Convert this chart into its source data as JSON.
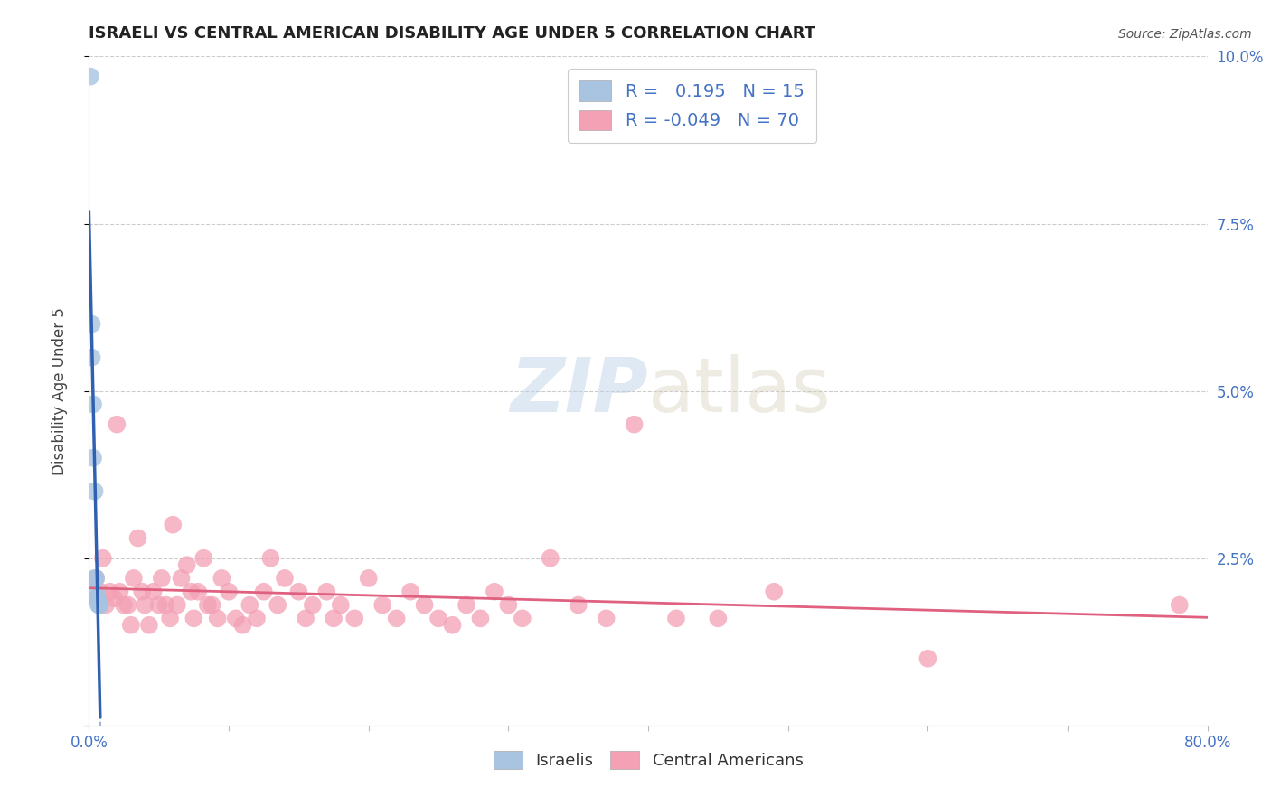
{
  "title": "ISRAELI VS CENTRAL AMERICAN DISABILITY AGE UNDER 5 CORRELATION CHART",
  "source": "Source: ZipAtlas.com",
  "ylabel": "Disability Age Under 5",
  "watermark_zip": "ZIP",
  "watermark_atlas": "atlas",
  "xlim": [
    0.0,
    0.8
  ],
  "ylim": [
    0.0,
    0.1
  ],
  "xticks": [
    0.0,
    0.8
  ],
  "xtick_labels": [
    "0.0%",
    "80.0%"
  ],
  "yticks": [
    0.0,
    0.025,
    0.05,
    0.075,
    0.1
  ],
  "ytick_labels_right": [
    "",
    "2.5%",
    "5.0%",
    "7.5%",
    "10.0%"
  ],
  "grid_yticks": [
    0.025,
    0.05,
    0.075,
    0.1
  ],
  "R_israeli": 0.195,
  "N_israeli": 15,
  "R_central": -0.049,
  "N_central": 70,
  "israeli_color": "#a8c4e0",
  "central_color": "#f4a0b5",
  "israeli_line_color": "#3060b0",
  "central_line_color": "#e06080",
  "title_color": "#222222",
  "axis_label_color": "#4472c4",
  "source_color": "#555555",
  "background_color": "#ffffff",
  "grid_color": "#cccccc",
  "spine_color": "#bbbbbb",
  "israeli_x": [
    0.001,
    0.002,
    0.002,
    0.003,
    0.003,
    0.004,
    0.004,
    0.005,
    0.005,
    0.005,
    0.006,
    0.006,
    0.007,
    0.007,
    0.008
  ],
  "israeli_y": [
    0.097,
    0.06,
    0.055,
    0.048,
    0.04,
    0.035,
    0.022,
    0.022,
    0.02,
    0.019,
    0.019,
    0.019,
    0.018,
    0.018,
    0.018
  ],
  "central_x": [
    0.005,
    0.008,
    0.01,
    0.012,
    0.015,
    0.018,
    0.02,
    0.022,
    0.025,
    0.028,
    0.03,
    0.032,
    0.035,
    0.038,
    0.04,
    0.043,
    0.046,
    0.05,
    0.052,
    0.055,
    0.058,
    0.06,
    0.063,
    0.066,
    0.07,
    0.073,
    0.075,
    0.078,
    0.082,
    0.085,
    0.088,
    0.092,
    0.095,
    0.1,
    0.105,
    0.11,
    0.115,
    0.12,
    0.125,
    0.13,
    0.135,
    0.14,
    0.15,
    0.155,
    0.16,
    0.17,
    0.175,
    0.18,
    0.19,
    0.2,
    0.21,
    0.22,
    0.23,
    0.24,
    0.25,
    0.26,
    0.27,
    0.28,
    0.29,
    0.3,
    0.31,
    0.33,
    0.35,
    0.37,
    0.39,
    0.42,
    0.45,
    0.49,
    0.6,
    0.78
  ],
  "central_y": [
    0.022,
    0.02,
    0.025,
    0.018,
    0.02,
    0.019,
    0.045,
    0.02,
    0.018,
    0.018,
    0.015,
    0.022,
    0.028,
    0.02,
    0.018,
    0.015,
    0.02,
    0.018,
    0.022,
    0.018,
    0.016,
    0.03,
    0.018,
    0.022,
    0.024,
    0.02,
    0.016,
    0.02,
    0.025,
    0.018,
    0.018,
    0.016,
    0.022,
    0.02,
    0.016,
    0.015,
    0.018,
    0.016,
    0.02,
    0.025,
    0.018,
    0.022,
    0.02,
    0.016,
    0.018,
    0.02,
    0.016,
    0.018,
    0.016,
    0.022,
    0.018,
    0.016,
    0.02,
    0.018,
    0.016,
    0.015,
    0.018,
    0.016,
    0.02,
    0.018,
    0.016,
    0.025,
    0.018,
    0.016,
    0.045,
    0.016,
    0.016,
    0.02,
    0.01,
    0.018
  ],
  "isr_line_x0": 0.0,
  "isr_line_x1": 0.008,
  "isr_line_dash_x0": 0.001,
  "isr_line_dash_x1": 0.27,
  "cen_line_x0": 0.0,
  "cen_line_x1": 0.8
}
